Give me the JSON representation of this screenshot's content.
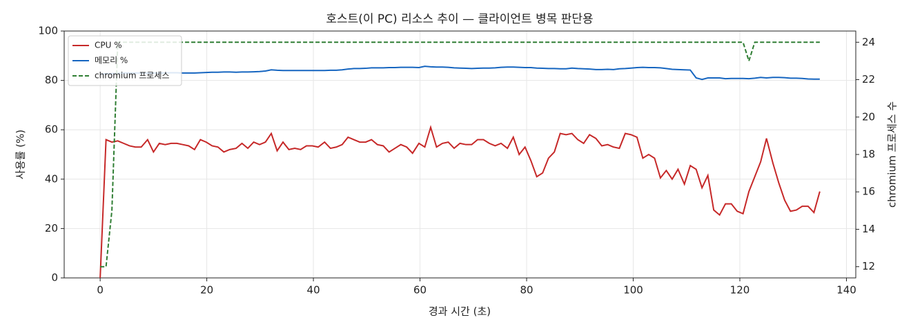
{
  "chart_data": {
    "type": "line",
    "title": "호스트(이 PC) 리소스 추이 — 클라이언트 병목 판단용",
    "xlabel": "경과 시간 (초)",
    "ylabel": "사용률 (%)",
    "y2label": "chromium 프로세스 수",
    "x": [
      0,
      1.1,
      2.2,
      3.3,
      4.4,
      5.5,
      6.6,
      7.7,
      8.9,
      10.0,
      11.1,
      12.2,
      13.3,
      14.4,
      15.5,
      16.6,
      17.7,
      18.8,
      19.9,
      21.0,
      22.1,
      23.2,
      24.3,
      25.5,
      26.6,
      27.7,
      28.8,
      29.9,
      31.0,
      32.1,
      33.2,
      34.3,
      35.4,
      36.5,
      37.6,
      38.7,
      39.8,
      40.9,
      42.1,
      43.2,
      44.3,
      45.4,
      46.5,
      47.6,
      48.7,
      49.8,
      50.9,
      52.0,
      53.1,
      54.2,
      55.3,
      56.4,
      57.5,
      58.6,
      59.8,
      60.9,
      62.0,
      63.1,
      64.2,
      65.3,
      66.4,
      67.5,
      68.6,
      69.7,
      70.8,
      71.9,
      73.0,
      74.1,
      75.2,
      76.4,
      77.5,
      78.6,
      79.7,
      80.8,
      81.9,
      83.0,
      84.1,
      85.2,
      86.3,
      87.4,
      88.5,
      89.6,
      90.7,
      91.8,
      93.0,
      94.1,
      95.2,
      96.3,
      97.4,
      98.5,
      99.6,
      100.7,
      101.8,
      102.9,
      104.0,
      105.1,
      106.2,
      107.3,
      108.4,
      109.6,
      110.7,
      111.8,
      112.9,
      114.0,
      115.1,
      116.2,
      117.3,
      118.4,
      119.5,
      120.6,
      121.7,
      122.8,
      123.9,
      125.0,
      126.2,
      127.3,
      128.4,
      129.5,
      130.6,
      131.7,
      132.8,
      133.9,
      135.0
    ],
    "series": [
      {
        "name": "CPU %",
        "color": "#c62828",
        "axis": "y",
        "dashed": false,
        "values": [
          0,
          56,
          55,
          55.5,
          54.5,
          53.5,
          53,
          53,
          56,
          51,
          54.5,
          54,
          54.5,
          54.5,
          54,
          53.5,
          52,
          56,
          55,
          53.5,
          53,
          51,
          52,
          52.5,
          54.5,
          52.5,
          55,
          54,
          55,
          58.5,
          51.5,
          55,
          52,
          52.5,
          52,
          53.5,
          53.5,
          53,
          55,
          52.5,
          53,
          54,
          57,
          56,
          55,
          55,
          56,
          54,
          53.5,
          51,
          52.5,
          54,
          53,
          50.5,
          54.5,
          53,
          61,
          53,
          54.5,
          55,
          52.5,
          54.5,
          54,
          54,
          56,
          56,
          54.5,
          53.5,
          54.5,
          52.5,
          57,
          50,
          53,
          47.5,
          41,
          42.5,
          48.5,
          51,
          58.5,
          58,
          58.5,
          56,
          54.5,
          58,
          56.5,
          53.5,
          54,
          53,
          52.5,
          58.5,
          58,
          57,
          48.5,
          50,
          48.5,
          40.5,
          43.5,
          40,
          44,
          38,
          45.5,
          44,
          36.5,
          41.5,
          27.5,
          25.5,
          30,
          30,
          27,
          26,
          35,
          41,
          47,
          56.5,
          46.5,
          38.5,
          31.5,
          27,
          27.5,
          29,
          29,
          26.5,
          35
        ]
      },
      {
        "name": "메모리 %",
        "color": "#1565c0",
        "axis": "y",
        "dashed": false,
        "values": [
          82.5,
          82.7,
          82.8,
          82.9,
          83,
          83,
          83,
          83,
          83,
          83,
          83,
          83,
          83.1,
          83.1,
          83,
          83,
          83,
          83.1,
          83.2,
          83.3,
          83.3,
          83.4,
          83.4,
          83.3,
          83.4,
          83.4,
          83.5,
          83.6,
          83.8,
          84.3,
          84.1,
          84,
          84,
          84,
          84,
          84,
          84,
          84,
          84,
          84.1,
          84.1,
          84.3,
          84.6,
          84.8,
          84.8,
          84.9,
          85.1,
          85.1,
          85.1,
          85.2,
          85.2,
          85.3,
          85.3,
          85.3,
          85.2,
          85.7,
          85.5,
          85.4,
          85.4,
          85.3,
          85.1,
          85,
          84.9,
          84.8,
          84.9,
          85,
          85,
          85.1,
          85.3,
          85.4,
          85.4,
          85.3,
          85.2,
          85.2,
          85,
          84.9,
          84.8,
          84.8,
          84.7,
          84.7,
          85,
          84.8,
          84.7,
          84.6,
          84.4,
          84.4,
          84.5,
          84.4,
          84.7,
          84.8,
          85,
          85.2,
          85.3,
          85.2,
          85.2,
          85.1,
          84.8,
          84.5,
          84.4,
          84.3,
          84.2,
          81,
          80.4,
          81,
          81,
          81,
          80.7,
          80.8,
          80.8,
          80.8,
          80.7,
          80.9,
          81.2,
          81,
          81.2,
          81.2,
          81.1,
          80.9,
          80.9,
          80.8,
          80.6,
          80.5,
          80.5
        ]
      },
      {
        "name": "chromium 프로세스",
        "color": "#2e7d32",
        "axis": "y2",
        "dashed": true,
        "values": [
          12,
          12,
          15,
          24,
          24,
          24,
          24,
          24,
          24,
          24,
          24,
          24,
          24,
          24,
          24,
          24,
          24,
          24,
          24,
          24,
          24,
          24,
          24,
          24,
          24,
          24,
          24,
          24,
          24,
          24,
          24,
          24,
          24,
          24,
          24,
          24,
          24,
          24,
          24,
          24,
          24,
          24,
          24,
          24,
          24,
          24,
          24,
          24,
          24,
          24,
          24,
          24,
          24,
          24,
          24,
          24,
          24,
          24,
          24,
          24,
          24,
          24,
          24,
          24,
          24,
          24,
          24,
          24,
          24,
          24,
          24,
          24,
          24,
          24,
          24,
          24,
          24,
          24,
          24,
          24,
          24,
          24,
          24,
          24,
          24,
          24,
          24,
          24,
          24,
          24,
          24,
          24,
          24,
          24,
          24,
          24,
          24,
          24,
          24,
          24,
          24,
          24,
          24,
          24,
          24,
          24,
          24,
          24,
          24,
          24,
          23,
          24,
          24,
          24,
          24,
          24,
          24,
          24,
          24,
          24,
          24,
          24,
          24
        ]
      }
    ],
    "xlim": [
      -6.75,
      141.75
    ],
    "xticks": [
      0,
      20,
      40,
      60,
      80,
      100,
      120,
      140
    ],
    "ylim": [
      0,
      100
    ],
    "yticks": [
      0,
      20,
      40,
      60,
      80,
      100
    ],
    "y2lim": [
      11.4,
      24.6
    ],
    "y2ticks": [
      12,
      14,
      16,
      18,
      20,
      22,
      24
    ],
    "grid": true,
    "legend": "upper-left"
  }
}
